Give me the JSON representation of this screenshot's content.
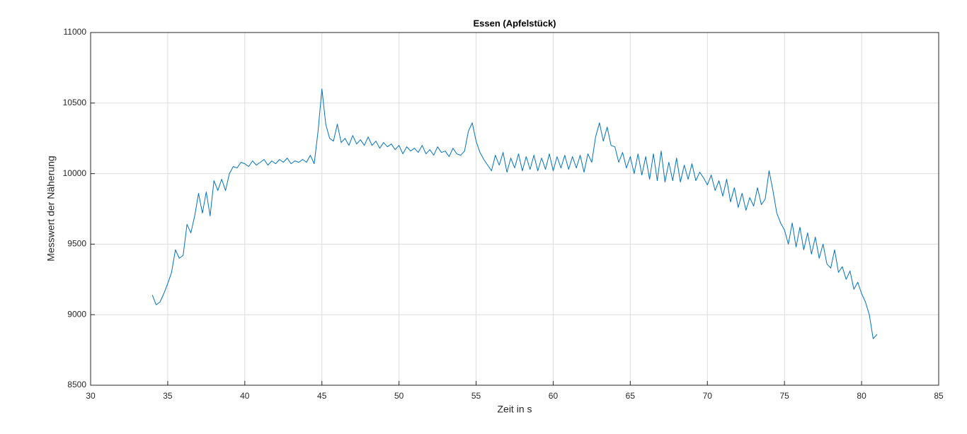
{
  "chart_data": {
    "type": "line",
    "title": "Essen (Apfelstück)",
    "x_label": "Zeit in s",
    "y_label": "Messwert der Näherung",
    "xlim": [
      30,
      85
    ],
    "xticks": [
      30,
      35,
      40,
      45,
      50,
      55,
      60,
      65,
      70,
      75,
      80,
      85
    ],
    "ylim": [
      8500,
      11000
    ],
    "yticks": [
      8500,
      9000,
      9500,
      10000,
      10500,
      11000
    ],
    "grid": true,
    "x": [
      34,
      34.25,
      34.5,
      34.75,
      35,
      35.25,
      35.5,
      35.75,
      36,
      36.25,
      36.5,
      36.75,
      37,
      37.25,
      37.5,
      37.75,
      38,
      38.25,
      38.5,
      38.75,
      39,
      39.25,
      39.5,
      39.75,
      40,
      40.25,
      40.5,
      40.75,
      41,
      41.25,
      41.5,
      41.75,
      42,
      42.25,
      42.5,
      42.75,
      43,
      43.25,
      43.5,
      43.75,
      44,
      44.25,
      44.5,
      44.75,
      45,
      45.25,
      45.5,
      45.75,
      46,
      46.25,
      46.5,
      46.75,
      47,
      47.25,
      47.5,
      47.75,
      48,
      48.25,
      48.5,
      48.75,
      49,
      49.25,
      49.5,
      49.75,
      50,
      50.25,
      50.5,
      50.75,
      51,
      51.25,
      51.5,
      51.75,
      52,
      52.25,
      52.5,
      52.75,
      53,
      53.25,
      53.5,
      53.75,
      54,
      54.25,
      54.5,
      54.75,
      55,
      55.25,
      55.5,
      55.75,
      56,
      56.25,
      56.5,
      56.75,
      57,
      57.25,
      57.5,
      57.75,
      58,
      58.25,
      58.5,
      58.75,
      59,
      59.25,
      59.5,
      59.75,
      60,
      60.25,
      60.5,
      60.75,
      61,
      61.25,
      61.5,
      61.75,
      62,
      62.25,
      62.5,
      62.75,
      63,
      63.25,
      63.5,
      63.75,
      64,
      64.25,
      64.5,
      64.75,
      65,
      65.25,
      65.5,
      65.75,
      66,
      66.25,
      66.5,
      66.75,
      67,
      67.25,
      67.5,
      67.75,
      68,
      68.25,
      68.5,
      68.75,
      69,
      69.25,
      69.5,
      69.75,
      70,
      70.25,
      70.5,
      70.75,
      71,
      71.25,
      71.5,
      71.75,
      72,
      72.25,
      72.5,
      72.75,
      73,
      73.25,
      73.5,
      73.75,
      74,
      74.25,
      74.5,
      74.75,
      75,
      75.25,
      75.5,
      75.75,
      76,
      76.25,
      76.5,
      76.75,
      77,
      77.25,
      77.5,
      77.75,
      78,
      78.25,
      78.5,
      78.75,
      79,
      79.25,
      79.5,
      79.75,
      80,
      80.25,
      80.5,
      80.75,
      81
    ],
    "series": [
      {
        "color": "#0072bd",
        "values": [
          9140,
          9070,
          9090,
          9150,
          9220,
          9300,
          9460,
          9400,
          9420,
          9640,
          9580,
          9700,
          9860,
          9720,
          9870,
          9700,
          9950,
          9880,
          9960,
          9880,
          10000,
          10050,
          10040,
          10080,
          10070,
          10050,
          10090,
          10060,
          10080,
          10100,
          10060,
          10090,
          10070,
          10100,
          10080,
          10110,
          10070,
          10090,
          10080,
          10100,
          10080,
          10130,
          10070,
          10300,
          10600,
          10350,
          10250,
          10230,
          10350,
          10220,
          10250,
          10200,
          10270,
          10210,
          10240,
          10200,
          10260,
          10200,
          10230,
          10180,
          10220,
          10190,
          10210,
          10170,
          10200,
          10140,
          10190,
          10160,
          10180,
          10150,
          10200,
          10140,
          10170,
          10130,
          10190,
          10150,
          10160,
          10120,
          10180,
          10140,
          10130,
          10160,
          10300,
          10360,
          10230,
          10150,
          10100,
          10060,
          10020,
          10130,
          10060,
          10150,
          10010,
          10110,
          10040,
          10140,
          10020,
          10120,
          10030,
          10130,
          10020,
          10110,
          10030,
          10140,
          10020,
          10120,
          10040,
          10130,
          10030,
          10120,
          10040,
          10130,
          10010,
          10140,
          10080,
          10260,
          10360,
          10230,
          10330,
          10200,
          10190,
          10080,
          10150,
          10040,
          10120,
          10000,
          10140,
          9990,
          10120,
          9960,
          10140,
          9950,
          10160,
          9940,
          10080,
          9950,
          10110,
          9940,
          10060,
          9960,
          10070,
          9950,
          10010,
          9970,
          9920,
          9990,
          9880,
          9950,
          9840,
          9960,
          9800,
          9900,
          9760,
          9860,
          9740,
          9830,
          9770,
          9900,
          9780,
          9820,
          10020,
          9880,
          9720,
          9650,
          9600,
          9500,
          9650,
          9480,
          9620,
          9460,
          9580,
          9430,
          9550,
          9400,
          9500,
          9360,
          9330,
          9460,
          9300,
          9340,
          9250,
          9310,
          9180,
          9230,
          9150,
          9090,
          9000,
          8830,
          8860
        ]
      }
    ]
  }
}
